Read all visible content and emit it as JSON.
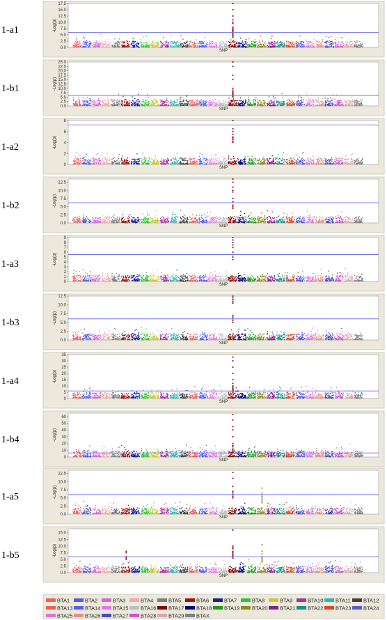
{
  "chart_data": {
    "type": "scatter",
    "chromosomes": [
      "BTA1",
      "BTA2",
      "BTA3",
      "BTA4",
      "BTA5",
      "BTA6",
      "BTA7",
      "BTA8",
      "BTA9",
      "BTA10",
      "BTA11",
      "BTA12",
      "BTA13",
      "BTA14",
      "BTA15",
      "BTA16",
      "BTA17",
      "BTA18",
      "BTA19",
      "BTA20",
      "BTA21",
      "BTA22",
      "BTA23",
      "BTA24",
      "BTA25",
      "BTA26",
      "BTA27",
      "BTA28",
      "BTA29",
      "BTAX"
    ],
    "chromosome_colors": [
      "#f0605e",
      "#5a5adf",
      "#d966d9",
      "#f2a8a8",
      "#7d7d7d",
      "#a01010",
      "#1a1aa0",
      "#2fc42f",
      "#c8c832",
      "#a832a8",
      "#32b4b4",
      "#404040",
      "#e8605e",
      "#5a5aff",
      "#e878e8",
      "#bdbdbd",
      "#8b0000",
      "#00007a",
      "#1e9a1e",
      "#8b8b1e",
      "#8b1e8b",
      "#1e8b8b",
      "#d94a2a",
      "#5858d8",
      "#d878d8",
      "#e8908a",
      "#4a4ab8",
      "#c858c8",
      "#d8a8a8",
      "#808080"
    ],
    "plots": [
      {
        "label": "1-a1",
        "ylabel": "-Log(p)",
        "xlabel": "SNP",
        "yticks": [
          "0.0",
          "2.5",
          "5.0",
          "7.5",
          "10.0",
          "12.5",
          "15.0",
          "17.5"
        ],
        "ymax": 17.5,
        "threshold": 6.0,
        "peak_chr": 16,
        "peak_values": [
          17.5,
          15.0,
          12.5,
          11.0,
          10.0,
          9.5,
          8.0,
          7.5,
          7.0,
          6.8,
          6.5,
          6.0,
          5.5,
          5.0,
          4.5,
          4.0
        ],
        "secondary": []
      },
      {
        "label": "1-b1",
        "ylabel": "-Log(p)",
        "xlabel": "SNP",
        "yticks": [
          "0.0",
          "2.5",
          "5.0",
          "7.5",
          "10.0",
          "12.5",
          "15.0",
          "17.5",
          "20.0",
          "22.5",
          "25.0"
        ],
        "ymax": 25.0,
        "threshold": 6.0,
        "peak_chr": 16,
        "peak_values": [
          25.0,
          22.5,
          17.5,
          15.0,
          10.0,
          9.0,
          8.0,
          7.5,
          7.0,
          6.5,
          6.0,
          5.5,
          5.0
        ],
        "secondary": []
      },
      {
        "label": "1-a2",
        "ylabel": "-Log(p)",
        "xlabel": "SNP",
        "yticks": [
          "0",
          "2",
          "4",
          "6",
          "8"
        ],
        "ymax": 8.0,
        "threshold": 7.2,
        "peak_chr": 16,
        "peak_values": [
          8.0,
          6.5,
          6.0,
          5.5,
          5.0,
          4.8,
          4.5,
          4.2,
          4.0
        ],
        "secondary": []
      },
      {
        "label": "1-b2",
        "ylabel": "-Log(p)",
        "xlabel": "SNP",
        "yticks": [
          "0.0",
          "2.5",
          "5.0",
          "7.5",
          "10.0",
          "12.5"
        ],
        "ymax": 13.5,
        "threshold": 6.2,
        "peak_chr": 16,
        "peak_values": [
          13.5,
          12.5,
          11.0,
          10.0,
          9.5,
          7.5,
          6.5,
          5.5,
          5.0,
          4.5
        ],
        "secondary": []
      },
      {
        "label": "1-a3",
        "ylabel": "-Log(p)",
        "xlabel": "SNP",
        "yticks": [
          "0",
          "1",
          "2",
          "3",
          "4",
          "5",
          "6",
          "7",
          "8",
          "9"
        ],
        "ymax": 9.0,
        "threshold": 5.5,
        "peak_chr": 16,
        "peak_values": [
          9.0,
          8.5,
          8.0,
          7.5,
          7.0,
          6.0,
          5.5,
          5.0,
          4.5
        ],
        "secondary": []
      },
      {
        "label": "1-b3",
        "ylabel": "-Log(p)",
        "xlabel": "SNP",
        "yticks": [
          "0.0",
          "2.5",
          "5.0",
          "7.5",
          "10.0",
          "12.5"
        ],
        "ymax": 12.5,
        "threshold": 6.0,
        "peak_chr": 16,
        "peak_values": [
          12.5,
          12.0,
          11.5,
          11.0,
          10.5,
          7.0,
          6.5,
          6.0,
          5.5,
          5.0
        ],
        "secondary": []
      },
      {
        "label": "1-a4",
        "ylabel": "-Log(p)",
        "xlabel": "SNP",
        "yticks": [
          "0",
          "5",
          "10",
          "15",
          "20",
          "25",
          "30",
          "35"
        ],
        "ymax": 35.0,
        "threshold": 6.0,
        "peak_chr": 16,
        "peak_values": [
          33.0,
          30.0,
          25.0,
          20.0,
          15.0,
          12.0,
          10.0,
          9.0,
          8.0,
          7.0,
          6.0,
          5.0
        ],
        "secondary": []
      },
      {
        "label": "1-b4",
        "ylabel": "-Log(p)",
        "xlabel": "SNP",
        "yticks": [
          "0",
          "10",
          "20",
          "30",
          "40",
          "50",
          "60"
        ],
        "ymax": 65.0,
        "threshold": 6.0,
        "peak_chr": 16,
        "peak_values": [
          63.0,
          55.0,
          45.0,
          40.0,
          30.0,
          20.0,
          17.0,
          15.0,
          12.0,
          10.0,
          8.0,
          7.0
        ],
        "secondary": []
      },
      {
        "label": "1-a5",
        "ylabel": "-Log(p)",
        "xlabel": "SNP",
        "yticks": [
          "0.0",
          "2.5",
          "5.0",
          "7.5",
          "10.0",
          "12.5"
        ],
        "ymax": 13.5,
        "threshold": 6.0,
        "peak_chr": 16,
        "peak_values": [
          12.8,
          11.0,
          8.5,
          7.0,
          6.5,
          6.0,
          5.5,
          5.0
        ],
        "secondary": [
          {
            "chr": 19,
            "values": [
              8.0,
              6.5,
              6.0,
              5.5,
              5.0,
              4.5,
              4.0,
              3.5
            ]
          }
        ]
      },
      {
        "label": "1-b5",
        "ylabel": "-Log(p)",
        "xlabel": "SNP",
        "yticks": [
          "0.0",
          "2.5",
          "5.0",
          "7.5",
          "10.0",
          "12.5",
          "15.0"
        ],
        "ymax": 16.5,
        "threshold": 6.0,
        "peak_chr": 16,
        "peak_values": [
          16.0,
          10.0,
          9.5,
          9.0,
          8.0,
          7.5,
          7.0,
          6.5,
          6.0,
          5.5
        ],
        "secondary": [
          {
            "chr": 19,
            "values": [
              10.5,
              8.0,
              7.0,
              6.0,
              5.5,
              5.0,
              4.5,
              4.0
            ]
          },
          {
            "chr": 5,
            "values": [
              8.0,
              7.5,
              6.0,
              5.5,
              5.0
            ]
          }
        ]
      }
    ]
  }
}
